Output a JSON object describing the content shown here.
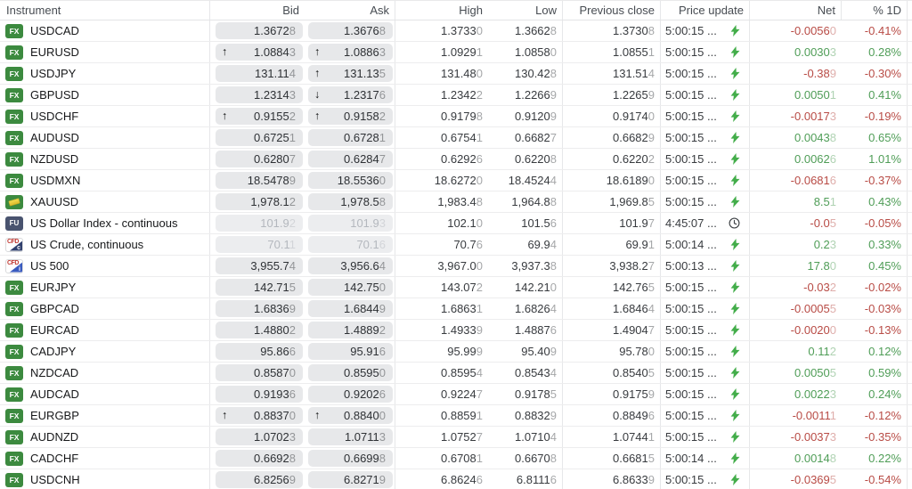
{
  "header": {
    "instrument": "Instrument",
    "bid": "Bid",
    "ask": "Ask",
    "high": "High",
    "low": "Low",
    "prev_close": "Previous close",
    "price_update": "Price update",
    "net": "Net",
    "pct_1d": "% 1D"
  },
  "badges": {
    "fx": "FX",
    "fu": "FU",
    "cfd": "CFD",
    "cfd_c_letter": "c",
    "cfd_i_letter": "i"
  },
  "glyphs": {
    "up": "↑",
    "down": "↓"
  },
  "colors": {
    "positive": "#4f9d57",
    "negative": "#b84b45",
    "bolt_green": "#43ad4a",
    "fx_badge_green": "#3c8a3f",
    "fu_badge_navy": "#49536f",
    "cfd_red": "#c23b34",
    "pill_grey": "#e7e8ea",
    "stale_text": "#b4b8be"
  },
  "rows": [
    {
      "symbol": "USDCAD",
      "icon": "fx",
      "bid_arrow": "",
      "bid": "1.36728",
      "ask_arrow": "",
      "ask": "1.36768",
      "high": "1.37330",
      "low": "1.36628",
      "prev": "1.37308",
      "time": "5:00:15 ...",
      "update_icon": "bolt",
      "net": "-0.00560",
      "pct": "-0.41%",
      "stale": false
    },
    {
      "symbol": "EURUSD",
      "icon": "fx",
      "bid_arrow": "up",
      "bid": "1.08843",
      "ask_arrow": "up",
      "ask": "1.08863",
      "high": "1.09291",
      "low": "1.08580",
      "prev": "1.08551",
      "time": "5:00:15 ...",
      "update_icon": "bolt",
      "net": "0.00303",
      "pct": "0.28%",
      "stale": false
    },
    {
      "symbol": "USDJPY",
      "icon": "fx",
      "bid_arrow": "",
      "bid": "131.114",
      "ask_arrow": "up",
      "ask": "131.135",
      "high": "131.480",
      "low": "130.428",
      "prev": "131.514",
      "time": "5:00:15 ...",
      "update_icon": "bolt",
      "net": "-0.389",
      "pct": "-0.30%",
      "stale": false
    },
    {
      "symbol": "GBPUSD",
      "icon": "fx",
      "bid_arrow": "",
      "bid": "1.23143",
      "ask_arrow": "down",
      "ask": "1.23176",
      "high": "1.23422",
      "low": "1.22669",
      "prev": "1.22659",
      "time": "5:00:15 ...",
      "update_icon": "bolt",
      "net": "0.00501",
      "pct": "0.41%",
      "stale": false
    },
    {
      "symbol": "USDCHF",
      "icon": "fx",
      "bid_arrow": "up",
      "bid": "0.91552",
      "ask_arrow": "up",
      "ask": "0.91582",
      "high": "0.91798",
      "low": "0.91209",
      "prev": "0.91740",
      "time": "5:00:15 ...",
      "update_icon": "bolt",
      "net": "-0.00173",
      "pct": "-0.19%",
      "stale": false
    },
    {
      "symbol": "AUDUSD",
      "icon": "fx",
      "bid_arrow": "",
      "bid": "0.67251",
      "ask_arrow": "",
      "ask": "0.67281",
      "high": "0.67541",
      "low": "0.66827",
      "prev": "0.66829",
      "time": "5:00:15 ...",
      "update_icon": "bolt",
      "net": "0.00438",
      "pct": "0.65%",
      "stale": false
    },
    {
      "symbol": "NZDUSD",
      "icon": "fx",
      "bid_arrow": "",
      "bid": "0.62807",
      "ask_arrow": "",
      "ask": "0.62847",
      "high": "0.62926",
      "low": "0.62208",
      "prev": "0.62202",
      "time": "5:00:15 ...",
      "update_icon": "bolt",
      "net": "0.00626",
      "pct": "1.01%",
      "stale": false
    },
    {
      "symbol": "USDMXN",
      "icon": "fx",
      "bid_arrow": "",
      "bid": "18.54789",
      "ask_arrow": "",
      "ask": "18.55360",
      "high": "18.62720",
      "low": "18.45244",
      "prev": "18.61890",
      "time": "5:00:15 ...",
      "update_icon": "bolt",
      "net": "-0.06816",
      "pct": "-0.37%",
      "stale": false
    },
    {
      "symbol": "XAUUSD",
      "icon": "gold",
      "bid_arrow": "",
      "bid": "1,978.12",
      "ask_arrow": "",
      "ask": "1,978.58",
      "high": "1,983.48",
      "low": "1,964.88",
      "prev": "1,969.85",
      "time": "5:00:15 ...",
      "update_icon": "bolt",
      "net": "8.51",
      "pct": "0.43%",
      "stale": false
    },
    {
      "symbol": "US Dollar Index - continuous",
      "icon": "fu",
      "bid_arrow": "",
      "bid": "101.92",
      "ask_arrow": "",
      "ask": "101.93",
      "high": "102.10",
      "low": "101.56",
      "prev": "101.97",
      "time": "4:45:07 ...",
      "update_icon": "clock",
      "net": "-0.05",
      "pct": "-0.05%",
      "stale": true
    },
    {
      "symbol": "US Crude, continuous",
      "icon": "cfd-c",
      "bid_arrow": "",
      "bid": "70.11",
      "ask_arrow": "",
      "ask": "70.16",
      "high": "70.76",
      "low": "69.94",
      "prev": "69.91",
      "time": "5:00:14 ...",
      "update_icon": "bolt",
      "net": "0.23",
      "pct": "0.33%",
      "stale": true
    },
    {
      "symbol": "US 500",
      "icon": "cfd-i",
      "bid_arrow": "",
      "bid": "3,955.74",
      "ask_arrow": "",
      "ask": "3,956.64",
      "high": "3,967.00",
      "low": "3,937.38",
      "prev": "3,938.27",
      "time": "5:00:13 ...",
      "update_icon": "bolt",
      "net": "17.80",
      "pct": "0.45%",
      "stale": false
    },
    {
      "symbol": "EURJPY",
      "icon": "fx",
      "bid_arrow": "",
      "bid": "142.715",
      "ask_arrow": "",
      "ask": "142.750",
      "high": "143.072",
      "low": "142.210",
      "prev": "142.765",
      "time": "5:00:15 ...",
      "update_icon": "bolt",
      "net": "-0.032",
      "pct": "-0.02%",
      "stale": false
    },
    {
      "symbol": "GBPCAD",
      "icon": "fx",
      "bid_arrow": "",
      "bid": "1.68369",
      "ask_arrow": "",
      "ask": "1.68449",
      "high": "1.68631",
      "low": "1.68264",
      "prev": "1.68464",
      "time": "5:00:15 ...",
      "update_icon": "bolt",
      "net": "-0.00055",
      "pct": "-0.03%",
      "stale": false
    },
    {
      "symbol": "EURCAD",
      "icon": "fx",
      "bid_arrow": "",
      "bid": "1.48802",
      "ask_arrow": "",
      "ask": "1.48892",
      "high": "1.49339",
      "low": "1.48876",
      "prev": "1.49047",
      "time": "5:00:15 ...",
      "update_icon": "bolt",
      "net": "-0.00200",
      "pct": "-0.13%",
      "stale": false
    },
    {
      "symbol": "CADJPY",
      "icon": "fx",
      "bid_arrow": "",
      "bid": "95.866",
      "ask_arrow": "",
      "ask": "95.916",
      "high": "95.999",
      "low": "95.409",
      "prev": "95.780",
      "time": "5:00:15 ...",
      "update_icon": "bolt",
      "net": "0.112",
      "pct": "0.12%",
      "stale": false
    },
    {
      "symbol": "NZDCAD",
      "icon": "fx",
      "bid_arrow": "",
      "bid": "0.85870",
      "ask_arrow": "",
      "ask": "0.85950",
      "high": "0.85954",
      "low": "0.85434",
      "prev": "0.85405",
      "time": "5:00:15 ...",
      "update_icon": "bolt",
      "net": "0.00505",
      "pct": "0.59%",
      "stale": false
    },
    {
      "symbol": "AUDCAD",
      "icon": "fx",
      "bid_arrow": "",
      "bid": "0.91936",
      "ask_arrow": "",
      "ask": "0.92026",
      "high": "0.92247",
      "low": "0.91785",
      "prev": "0.91759",
      "time": "5:00:15 ...",
      "update_icon": "bolt",
      "net": "0.00223",
      "pct": "0.24%",
      "stale": false
    },
    {
      "symbol": "EURGBP",
      "icon": "fx",
      "bid_arrow": "up",
      "bid": "0.88370",
      "ask_arrow": "up",
      "ask": "0.88400",
      "high": "0.88591",
      "low": "0.88329",
      "prev": "0.88496",
      "time": "5:00:15 ...",
      "update_icon": "bolt",
      "net": "-0.00111",
      "pct": "-0.12%",
      "stale": false
    },
    {
      "symbol": "AUDNZD",
      "icon": "fx",
      "bid_arrow": "",
      "bid": "1.07023",
      "ask_arrow": "",
      "ask": "1.07113",
      "high": "1.07527",
      "low": "1.07104",
      "prev": "1.07441",
      "time": "5:00:15 ...",
      "update_icon": "bolt",
      "net": "-0.00373",
      "pct": "-0.35%",
      "stale": false
    },
    {
      "symbol": "CADCHF",
      "icon": "fx",
      "bid_arrow": "",
      "bid": "0.66928",
      "ask_arrow": "",
      "ask": "0.66998",
      "high": "0.67081",
      "low": "0.66708",
      "prev": "0.66815",
      "time": "5:00:14 ...",
      "update_icon": "bolt",
      "net": "0.00148",
      "pct": "0.22%",
      "stale": false
    },
    {
      "symbol": "USDCNH",
      "icon": "fx",
      "bid_arrow": "",
      "bid": "6.82569",
      "ask_arrow": "",
      "ask": "6.82719",
      "high": "6.86246",
      "low": "6.81116",
      "prev": "6.86339",
      "time": "5:00:15 ...",
      "update_icon": "bolt",
      "net": "-0.03695",
      "pct": "-0.54%",
      "stale": false
    }
  ]
}
